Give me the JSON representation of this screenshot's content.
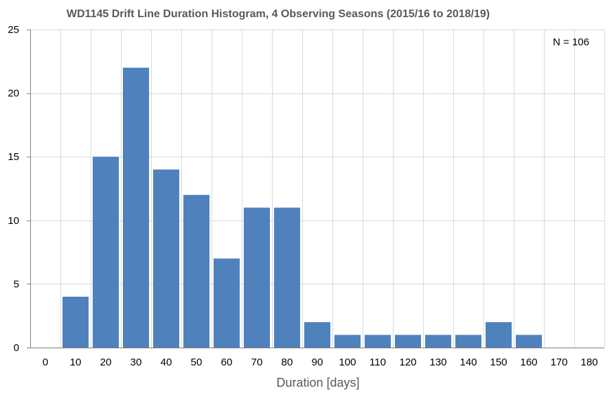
{
  "chart_data": {
    "type": "bar",
    "title": "WD1145 Drift Line Duration Histogram, 4 Observing Seasons (2015/16 to 2018/19)",
    "xlabel": "Duration [days]",
    "ylabel": "",
    "x_ticks": [
      "0",
      "10",
      "20",
      "30",
      "40",
      "50",
      "60",
      "70",
      "80",
      "90",
      "100",
      "110",
      "120",
      "130",
      "140",
      "150",
      "160",
      "170",
      "180"
    ],
    "y_ticks": [
      "0",
      "5",
      "10",
      "15",
      "20",
      "25"
    ],
    "xlim": [
      0,
      180
    ],
    "ylim": [
      0,
      25
    ],
    "grid": true,
    "categories": [
      10,
      20,
      30,
      40,
      50,
      60,
      70,
      80,
      90,
      100,
      110,
      120,
      130,
      140,
      150,
      160,
      170
    ],
    "values": [
      4,
      15,
      22,
      14,
      12,
      7,
      11,
      11,
      2,
      1,
      1,
      1,
      1,
      1,
      2,
      1,
      0
    ],
    "annotation": "N = 106",
    "bar_color": "#4f81bd",
    "grid_color": "#d9d9d9",
    "axis_color": "#7f7f7f"
  }
}
